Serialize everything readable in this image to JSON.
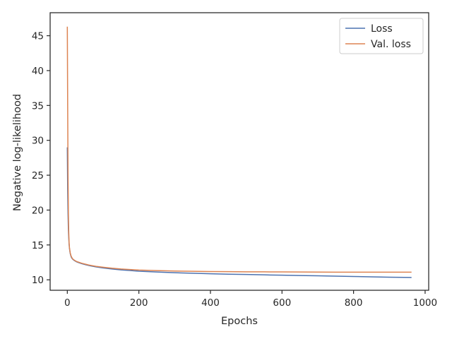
{
  "chart_data": {
    "type": "line",
    "xlabel": "Epochs",
    "ylabel": "Negative log-likelihood",
    "xlim": [
      -48,
      1010
    ],
    "ylim": [
      8.5,
      48.3
    ],
    "xticks": [
      0,
      200,
      400,
      600,
      800,
      1000
    ],
    "yticks": [
      10,
      15,
      20,
      25,
      30,
      35,
      40,
      45
    ],
    "grid": false,
    "legend_position": "top-right",
    "series": [
      {
        "name": "Loss",
        "color": "#4c72b0",
        "x": [
          0,
          1,
          2,
          3,
          4,
          5,
          6,
          8,
          10,
          12,
          15,
          20,
          25,
          30,
          40,
          50,
          60,
          80,
          100,
          125,
          150,
          175,
          200,
          250,
          300,
          350,
          400,
          450,
          500,
          550,
          600,
          650,
          700,
          750,
          800,
          850,
          900,
          962
        ],
        "y": [
          29.0,
          23.0,
          19.5,
          17.2,
          16.0,
          15.1,
          14.5,
          13.8,
          13.4,
          13.15,
          12.95,
          12.75,
          12.6,
          12.5,
          12.32,
          12.18,
          12.05,
          11.85,
          11.7,
          11.55,
          11.43,
          11.33,
          11.24,
          11.12,
          11.02,
          10.94,
          10.87,
          10.81,
          10.76,
          10.71,
          10.66,
          10.62,
          10.57,
          10.52,
          10.48,
          10.43,
          10.38,
          10.33
        ]
      },
      {
        "name": "Val. loss",
        "color": "#dd8452",
        "x": [
          0,
          1,
          2,
          3,
          4,
          5,
          6,
          8,
          10,
          12,
          15,
          20,
          25,
          30,
          40,
          50,
          60,
          80,
          100,
          125,
          150,
          175,
          200,
          250,
          300,
          350,
          400,
          450,
          500,
          550,
          600,
          650,
          700,
          750,
          800,
          850,
          900,
          962
        ],
        "y": [
          46.3,
          35.0,
          25.0,
          19.5,
          16.8,
          15.3,
          14.6,
          13.9,
          13.5,
          13.25,
          13.0,
          12.8,
          12.65,
          12.55,
          12.38,
          12.25,
          12.12,
          11.93,
          11.8,
          11.66,
          11.55,
          11.47,
          11.4,
          11.32,
          11.26,
          11.22,
          11.19,
          11.17,
          11.15,
          11.14,
          11.13,
          11.12,
          11.11,
          11.1,
          11.1,
          11.1,
          11.1,
          11.1
        ]
      }
    ]
  }
}
